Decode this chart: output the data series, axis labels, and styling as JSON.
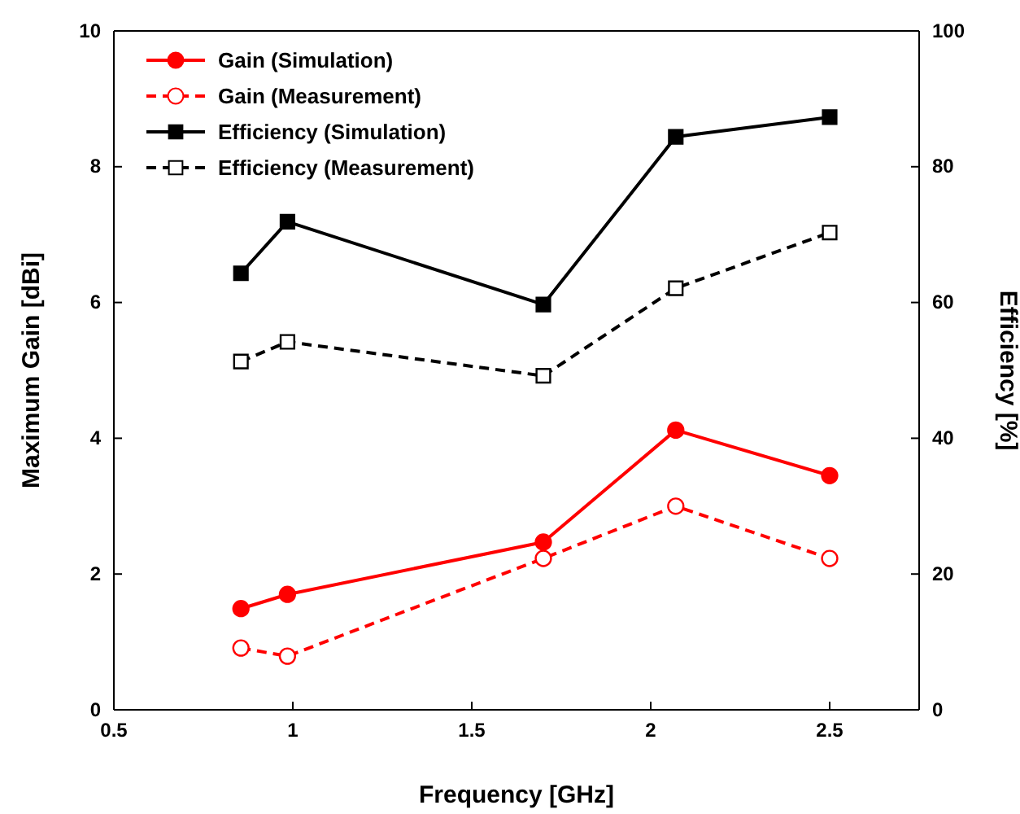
{
  "chart_data": {
    "type": "line",
    "xlabel": "Frequency [GHz]",
    "ylabel": "Maximum Gain [dBi]",
    "y2label": "Efficiency [%]",
    "xlim": [
      0.5,
      2.75
    ],
    "xticks": [
      0.5,
      1.0,
      1.5,
      2.0,
      2.5
    ],
    "ylim": [
      0,
      10
    ],
    "yticks": [
      0,
      2,
      4,
      6,
      8,
      10
    ],
    "y2lim": [
      0,
      100
    ],
    "y2ticks": [
      0,
      20,
      40,
      60,
      80,
      100
    ],
    "grid": false,
    "legend": "top left",
    "series": [
      {
        "name": "Gain (Simulation)",
        "color": "#ff0000",
        "marker": "circle",
        "line_style": "solid",
        "x": [
          0.855,
          0.985,
          1.7,
          2.07,
          2.5
        ],
        "values": [
          1.49,
          1.7,
          2.47,
          4.12,
          3.45
        ]
      },
      {
        "name": "Gain (Measurement)",
        "color": "#ff0000",
        "marker": "circle",
        "line_style": "dashed",
        "x": [
          0.855,
          0.985,
          1.7,
          2.07,
          2.5
        ],
        "values": [
          0.91,
          0.79,
          2.23,
          3.0,
          2.23
        ]
      },
      {
        "name": "Efficiency (Simulation)",
        "color": "#000000",
        "marker": "square",
        "line_style": "solid",
        "axis": "y2",
        "x": [
          0.855,
          0.985,
          1.7,
          2.07,
          2.5
        ],
        "values": [
          64.3,
          71.9,
          59.7,
          84.4,
          87.3
        ]
      },
      {
        "name": "Efficiency (Measurement)",
        "color": "#000000",
        "marker": "square",
        "line_style": "dashed",
        "axis": "y2",
        "x": [
          0.855,
          0.985,
          1.7,
          2.07,
          2.5
        ],
        "values": [
          51.3,
          54.2,
          49.2,
          62.1,
          70.3
        ]
      }
    ]
  }
}
